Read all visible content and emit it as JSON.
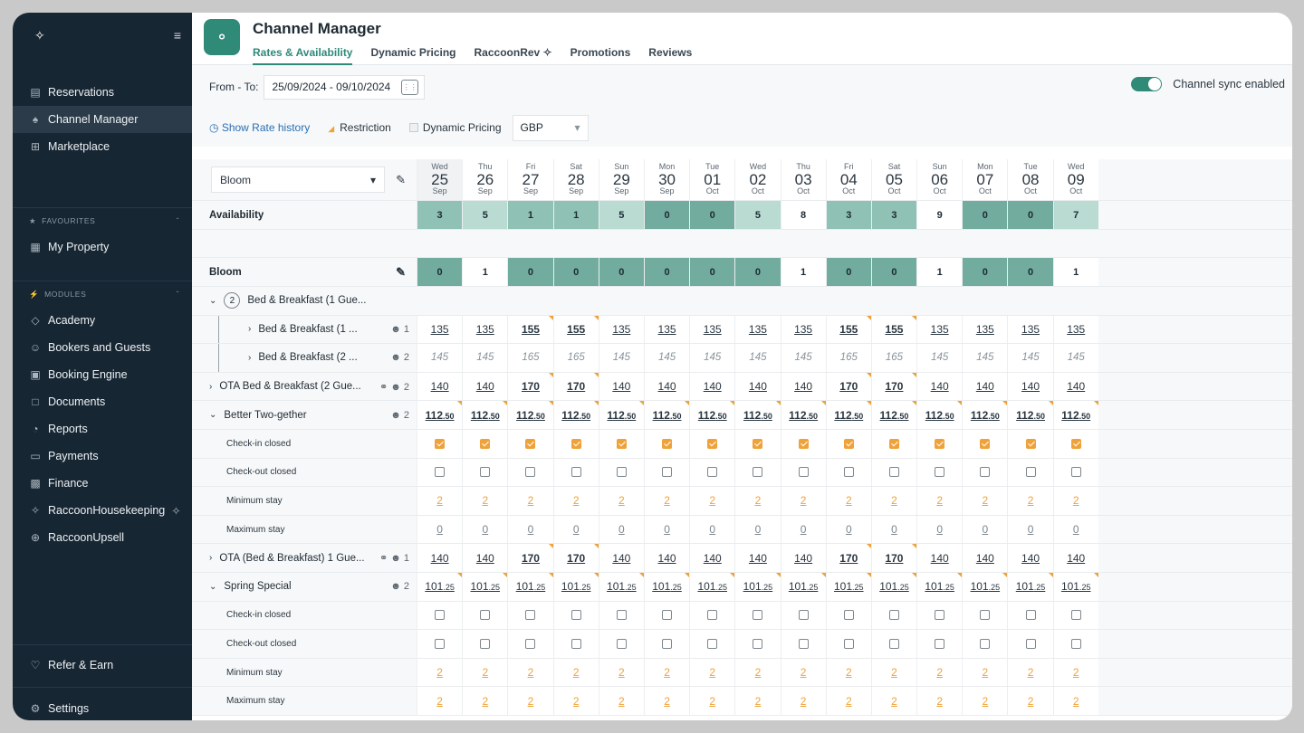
{
  "sidebar": {
    "logo": "✦̵",
    "nav": [
      {
        "label": "Reservations",
        "icon": "calendar-icon"
      },
      {
        "label": "Channel Manager",
        "icon": "channel-icon"
      },
      {
        "label": "Marketplace",
        "icon": "grid-icon"
      }
    ],
    "favourites_title": "FAVOURITES",
    "favourites": [
      {
        "label": "My Property",
        "icon": "property-icon"
      }
    ],
    "modules_title": "MODULES",
    "modules": [
      {
        "label": "Academy",
        "icon": "academy-icon"
      },
      {
        "label": "Bookers and Guests",
        "icon": "guests-icon"
      },
      {
        "label": "Booking Engine",
        "icon": "booking-engine-icon"
      },
      {
        "label": "Documents",
        "icon": "document-icon"
      },
      {
        "label": "Reports",
        "icon": "reports-icon"
      },
      {
        "label": "Payments",
        "icon": "payments-icon"
      },
      {
        "label": "Finance",
        "icon": "finance-icon"
      },
      {
        "label": "RaccoonHousekeeping",
        "icon": "housekeeping-icon"
      },
      {
        "label": "RaccoonUpsell",
        "icon": "upsell-icon"
      }
    ],
    "refer": "Refer & Earn",
    "settings": "Settings"
  },
  "header": {
    "title": "Channel Manager",
    "tabs": [
      "Rates & Availability",
      "Dynamic Pricing",
      "RaccoonRev",
      "Promotions",
      "Reviews"
    ]
  },
  "filters": {
    "from_to_label": "From - To:",
    "date_range": "25/09/2024 - 09/10/2024",
    "sync_label": "Channel sync enabled"
  },
  "options": {
    "rate_history": "Show Rate history",
    "restriction": "Restriction",
    "dynamic_pricing": "Dynamic Pricing",
    "currency": "GBP"
  },
  "grid": {
    "room_select": "Bloom",
    "days": [
      {
        "w": "Wed",
        "d": "25",
        "m": "Sep"
      },
      {
        "w": "Thu",
        "d": "26",
        "m": "Sep"
      },
      {
        "w": "Fri",
        "d": "27",
        "m": "Sep"
      },
      {
        "w": "Sat",
        "d": "28",
        "m": "Sep"
      },
      {
        "w": "Sun",
        "d": "29",
        "m": "Sep"
      },
      {
        "w": "Mon",
        "d": "30",
        "m": "Sep"
      },
      {
        "w": "Tue",
        "d": "01",
        "m": "Oct"
      },
      {
        "w": "Wed",
        "d": "02",
        "m": "Oct"
      },
      {
        "w": "Thu",
        "d": "03",
        "m": "Oct"
      },
      {
        "w": "Fri",
        "d": "04",
        "m": "Oct"
      },
      {
        "w": "Sat",
        "d": "05",
        "m": "Oct"
      },
      {
        "w": "Sun",
        "d": "06",
        "m": "Oct"
      },
      {
        "w": "Mon",
        "d": "07",
        "m": "Oct"
      },
      {
        "w": "Tue",
        "d": "08",
        "m": "Oct"
      },
      {
        "w": "Wed",
        "d": "09",
        "m": "Oct"
      }
    ],
    "availability_label": "Availability",
    "availability": [
      "3",
      "5",
      "1",
      "1",
      "5",
      "0",
      "0",
      "5",
      "8",
      "3",
      "3",
      "9",
      "0",
      "0",
      "7"
    ],
    "room_label": "Bloom",
    "room_avail": [
      "0",
      "1",
      "0",
      "0",
      "0",
      "0",
      "0",
      "0",
      "1",
      "0",
      "0",
      "1",
      "0",
      "0",
      "1"
    ],
    "plans": {
      "bb_group": {
        "count": "2",
        "label": "Bed & Breakfast (1 Gue..."
      },
      "bb1": {
        "label": "Bed & Breakfast (1 ...",
        "guests": "1",
        "values": [
          "135",
          "135",
          "155",
          "155",
          "135",
          "135",
          "135",
          "135",
          "135",
          "155",
          "155",
          "135",
          "135",
          "135",
          "135"
        ]
      },
      "bb2": {
        "label": "Bed & Breakfast (2 ...",
        "guests": "2",
        "values": [
          "145",
          "145",
          "165",
          "165",
          "145",
          "145",
          "145",
          "145",
          "145",
          "165",
          "165",
          "145",
          "145",
          "145",
          "145"
        ]
      },
      "ota_bb2": {
        "label": "OTA Bed & Breakfast (2 Gue...",
        "guests": "2",
        "values": [
          "140",
          "140",
          "170",
          "170",
          "140",
          "140",
          "140",
          "140",
          "140",
          "170",
          "170",
          "140",
          "140",
          "140",
          "140"
        ]
      },
      "two": {
        "label": "Better Two-gether",
        "guests": "2",
        "int": "112",
        "dec": ".50"
      },
      "two_checkin": "Check-in closed",
      "two_checkout": "Check-out closed",
      "two_min": {
        "label": "Minimum stay",
        "value": "2"
      },
      "two_max": {
        "label": "Maximum stay",
        "value": "0"
      },
      "ota_bb1": {
        "label": "OTA (Bed & Breakfast) 1 Gue...",
        "guests": "1",
        "values": [
          "140",
          "140",
          "170",
          "170",
          "140",
          "140",
          "140",
          "140",
          "140",
          "170",
          "170",
          "140",
          "140",
          "140",
          "140"
        ]
      },
      "spring": {
        "label": "Spring Special",
        "guests": "2",
        "int": "101",
        "dec": ".25"
      },
      "spring_checkin": "Check-in closed",
      "spring_checkout": "Check-out closed",
      "spring_min": {
        "label": "Minimum stay",
        "value": "2"
      },
      "spring_max": {
        "label": "Maximum stay",
        "value": "2"
      }
    }
  },
  "colors": {
    "accent": "#2f8a78",
    "restriction": "#f0a23a",
    "sidebar": "#172633"
  }
}
